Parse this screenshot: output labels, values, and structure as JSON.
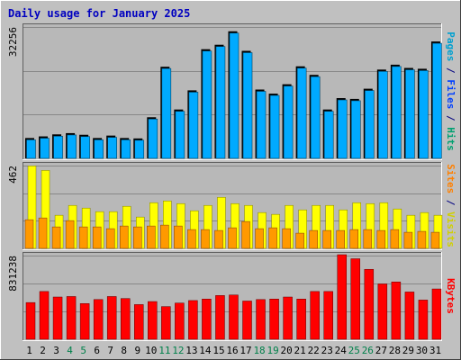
{
  "chart_data": {
    "type": "bar",
    "title": "Daily usage for January 2025",
    "categories": [
      "1",
      "2",
      "3",
      "4",
      "5",
      "6",
      "7",
      "8",
      "9",
      "10",
      "11",
      "12",
      "13",
      "14",
      "15",
      "16",
      "17",
      "18",
      "19",
      "20",
      "21",
      "22",
      "23",
      "24",
      "25",
      "26",
      "27",
      "28",
      "29",
      "30",
      "31"
    ],
    "weekend_days": [
      "4",
      "5",
      "11",
      "12",
      "18",
      "19",
      "25",
      "26"
    ],
    "panels": [
      {
        "id": "hits",
        "max_label": "32256",
        "ymax": 32256,
        "y_axis_label_parts": [
          {
            "text": "Pages",
            "color": "#00a0d0"
          },
          {
            "text": " / ",
            "color": "#000080"
          },
          {
            "text": "Files",
            "color": "#0040ff"
          },
          {
            "text": " / ",
            "color": "#000080"
          },
          {
            "text": "Hits",
            "color": "#00a070"
          }
        ],
        "series": [
          {
            "name": "Pages",
            "color": "#1e90c8",
            "values": [
              0,
              0,
              0,
              0,
              0,
              0,
              0,
              0,
              0,
              0,
              0,
              0,
              0,
              0,
              0,
              0,
              0,
              0,
              0,
              0,
              0,
              0,
              0,
              0,
              0,
              0,
              0,
              0,
              0,
              0,
              0
            ]
          },
          {
            "name": "Files",
            "color": "#1e90c8",
            "values": [
              5000,
              5400,
              5900,
              6200,
              5800,
              5000,
              5600,
              5000,
              4900,
              10100,
              22500,
              12000,
              16700,
              26800,
              27900,
              31200,
              26400,
              16900,
              15900,
              18200,
              22600,
              20500,
              12000,
              14800,
              14600,
              17100,
              21800,
              23000,
              22200,
              22000,
              28700
            ]
          },
          {
            "name": "Hits",
            "color": "#00aaff",
            "values": [
              5000,
              5400,
              5900,
              6200,
              5800,
              5000,
              5600,
              5000,
              4900,
              10100,
              22500,
              12000,
              16700,
              26800,
              27900,
              31200,
              26400,
              16900,
              15900,
              18200,
              22600,
              20500,
              12000,
              14800,
              14600,
              17100,
              21800,
              23000,
              22200,
              22000,
              28700
            ]
          }
        ]
      },
      {
        "id": "visits",
        "max_label": "462",
        "ymax": 462,
        "y_axis_label_parts": [
          {
            "text": "Sites",
            "color": "#ff8000"
          },
          {
            "text": " / ",
            "color": "#000080"
          },
          {
            "text": "Visits",
            "color": "#d0d000"
          }
        ],
        "series": [
          {
            "name": "Visits",
            "color": "#ffff00",
            "values": [
              460,
              435,
              185,
              240,
              225,
              205,
              205,
              235,
              175,
              255,
              265,
              250,
              210,
              240,
              285,
              250,
              240,
              200,
              190,
              240,
              215,
              240,
              240,
              215,
              255,
              250,
              255,
              220,
              185,
              200,
              185
            ]
          },
          {
            "name": "Sites",
            "color": "#ff9900",
            "values": [
              160,
              170,
              120,
              155,
              120,
              120,
              110,
              125,
              120,
              125,
              130,
              125,
              105,
              105,
              100,
              115,
              150,
              110,
              115,
              110,
              85,
              100,
              100,
              100,
              105,
              105,
              100,
              105,
              90,
              95,
              90
            ]
          }
        ]
      },
      {
        "id": "kbytes",
        "max_label": "831238",
        "ymax": 831238,
        "y_axis_label_parts": [
          {
            "text": "KBytes",
            "color": "#ff0000"
          }
        ],
        "series": [
          {
            "name": "KBytes",
            "color": "#ff0000",
            "values": [
              365000,
              475000,
              420000,
              425000,
              355000,
              395000,
              425000,
              405000,
              345000,
              375000,
              325000,
              360000,
              385000,
              400000,
              435000,
              440000,
              380000,
              395000,
              400000,
              420000,
              400000,
              475000,
              475000,
              840000,
              800000,
              695000,
              550000,
              570000,
              470000,
              390000,
              500000
            ]
          }
        ]
      }
    ]
  }
}
